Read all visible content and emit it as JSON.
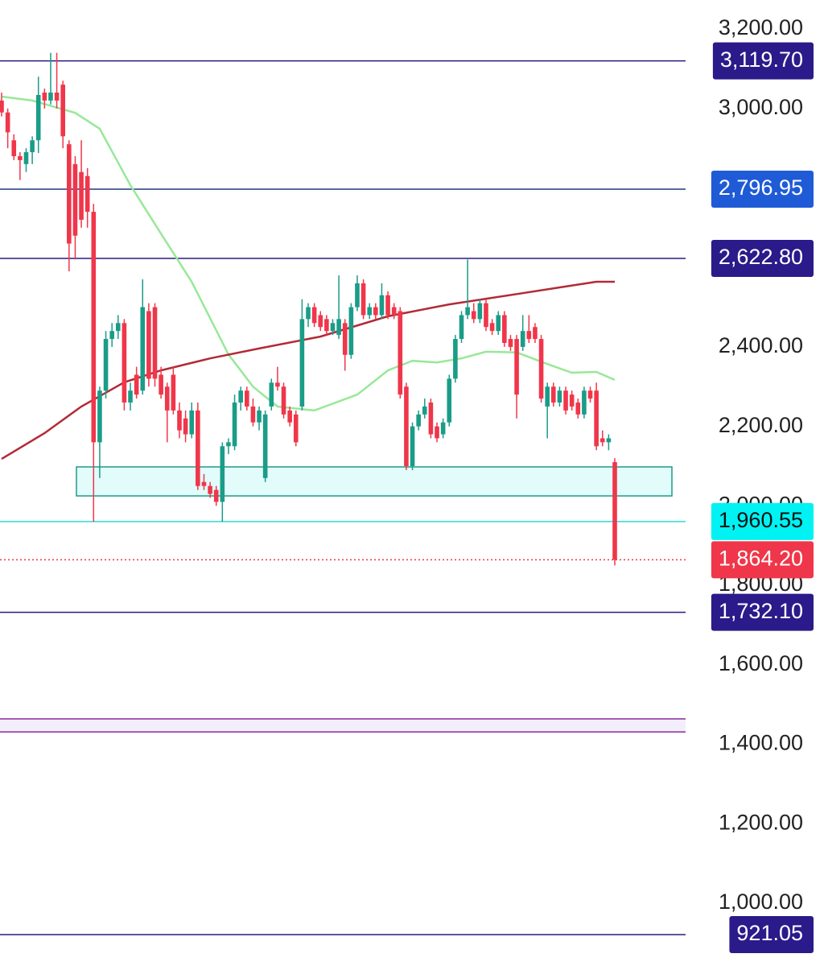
{
  "chart_data": {
    "type": "candlestick",
    "ylim": [
      842,
      3273
    ],
    "yticks": [
      {
        "value": 3200,
        "label": "3,200.00"
      },
      {
        "value": 3000,
        "label": "3,000.00"
      },
      {
        "value": 2400,
        "label": "2,400.00"
      },
      {
        "value": 2200,
        "label": "2,200.00"
      },
      {
        "value": 2000,
        "label": "2,000.00"
      },
      {
        "value": 1800,
        "label": "1,800.00"
      },
      {
        "value": 1600,
        "label": "1,600.00"
      },
      {
        "value": 1400,
        "label": "1,400.00"
      },
      {
        "value": 1200,
        "label": "1,200.00"
      },
      {
        "value": 1000,
        "label": "1,000.00"
      }
    ],
    "up_color": "#1a9c88",
    "down_color": "#f0364a",
    "candles": [
      [
        3020,
        3040,
        2980,
        2990
      ],
      [
        2990,
        3000,
        2900,
        2940
      ],
      [
        2920,
        2935,
        2870,
        2880
      ],
      [
        2880,
        2890,
        2820,
        2870
      ],
      [
        2860,
        2900,
        2840,
        2890
      ],
      [
        2890,
        2930,
        2860,
        2920
      ],
      [
        2920,
        3080,
        2888,
        3034
      ],
      [
        3040,
        3050,
        3000,
        3020
      ],
      [
        3020,
        3140,
        3010,
        3040
      ],
      [
        3040,
        3140,
        3000,
        3020
      ],
      [
        3060,
        3070,
        2900,
        2930
      ],
      [
        2910,
        2920,
        2590,
        2660
      ],
      [
        2860,
        2880,
        2620,
        2680
      ],
      [
        2840,
        2920,
        2700,
        2720
      ],
      [
        2830,
        2850,
        2700,
        2740
      ],
      [
        2740,
        2760,
        1960,
        2160
      ],
      [
        2160,
        2300,
        2070,
        2290
      ],
      [
        2290,
        2440,
        2270,
        2420
      ],
      [
        2420,
        2460,
        2400,
        2440
      ],
      [
        2440,
        2480,
        2420,
        2460
      ],
      [
        2460,
        2470,
        2240,
        2260
      ],
      [
        2260,
        2310,
        2240,
        2290
      ],
      [
        2330,
        2350,
        2270,
        2280
      ],
      [
        2290,
        2570,
        2280,
        2500
      ],
      [
        2490,
        2510,
        2300,
        2320
      ],
      [
        2500,
        2510,
        2300,
        2320
      ],
      [
        2330,
        2350,
        2270,
        2280
      ],
      [
        2300,
        2310,
        2160,
        2240
      ],
      [
        2330,
        2350,
        2230,
        2240
      ],
      [
        2240,
        2260,
        2170,
        2190
      ],
      [
        2220,
        2240,
        2160,
        2180
      ],
      [
        2180,
        2260,
        2170,
        2240
      ],
      [
        2240,
        2260,
        2040,
        2050
      ],
      [
        2060,
        2080,
        2040,
        2050
      ],
      [
        2050,
        2060,
        2020,
        2030
      ],
      [
        2040,
        2050,
        2000,
        2010
      ],
      [
        2010,
        2160,
        1960,
        2150
      ],
      [
        2150,
        2170,
        2130,
        2160
      ],
      [
        2150,
        2280,
        2140,
        2260
      ],
      [
        2260,
        2300,
        2240,
        2290
      ],
      [
        2290,
        2300,
        2240,
        2250
      ],
      [
        2250,
        2270,
        2200,
        2210
      ],
      [
        2210,
        2250,
        2190,
        2240
      ],
      [
        2070,
        2240,
        2060,
        2230
      ],
      [
        2250,
        2320,
        2240,
        2310
      ],
      [
        2310,
        2350,
        2290,
        2300
      ],
      [
        2300,
        2310,
        2220,
        2230
      ],
      [
        2240,
        2250,
        2200,
        2210
      ],
      [
        2230,
        2240,
        2150,
        2160
      ],
      [
        2250,
        2520,
        2240,
        2470
      ],
      [
        2470,
        2510,
        2450,
        2500
      ],
      [
        2500,
        2510,
        2450,
        2460
      ],
      [
        2480,
        2490,
        2440,
        2450
      ],
      [
        2470,
        2480,
        2430,
        2440
      ],
      [
        2440,
        2470,
        2430,
        2460
      ],
      [
        2430,
        2580,
        2420,
        2470
      ],
      [
        2460,
        2470,
        2340,
        2380
      ],
      [
        2380,
        2510,
        2370,
        2500
      ],
      [
        2500,
        2580,
        2490,
        2560
      ],
      [
        2560,
        2570,
        2470,
        2480
      ],
      [
        2480,
        2510,
        2470,
        2500
      ],
      [
        2500,
        2510,
        2470,
        2480
      ],
      [
        2480,
        2560,
        2470,
        2530
      ],
      [
        2530,
        2540,
        2470,
        2480
      ],
      [
        2500,
        2510,
        2470,
        2480
      ],
      [
        2490,
        2500,
        2270,
        2280
      ],
      [
        2300,
        2310,
        2090,
        2100
      ],
      [
        2100,
        2210,
        2090,
        2200
      ],
      [
        2200,
        2240,
        2190,
        2230
      ],
      [
        2230,
        2270,
        2220,
        2250
      ],
      [
        2260,
        2270,
        2170,
        2180
      ],
      [
        2200,
        2210,
        2160,
        2170
      ],
      [
        2180,
        2220,
        2170,
        2210
      ],
      [
        2210,
        2330,
        2200,
        2320
      ],
      [
        2320,
        2430,
        2310,
        2420
      ],
      [
        2420,
        2490,
        2410,
        2480
      ],
      [
        2480,
        2620,
        2470,
        2500
      ],
      [
        2490,
        2510,
        2460,
        2470
      ],
      [
        2470,
        2520,
        2460,
        2510
      ],
      [
        2510,
        2520,
        2440,
        2450
      ],
      [
        2460,
        2470,
        2430,
        2440
      ],
      [
        2440,
        2490,
        2430,
        2480
      ],
      [
        2480,
        2490,
        2400,
        2410
      ],
      [
        2420,
        2430,
        2390,
        2400
      ],
      [
        2420,
        2430,
        2220,
        2280
      ],
      [
        2400,
        2480,
        2390,
        2440
      ],
      [
        2440,
        2480,
        2410,
        2420
      ],
      [
        2450,
        2460,
        2410,
        2420
      ],
      [
        2420,
        2430,
        2260,
        2270
      ],
      [
        2250,
        2310,
        2170,
        2300
      ],
      [
        2300,
        2310,
        2250,
        2260
      ],
      [
        2260,
        2300,
        2250,
        2290
      ],
      [
        2290,
        2300,
        2230,
        2240
      ],
      [
        2280,
        2290,
        2240,
        2250
      ],
      [
        2260,
        2270,
        2220,
        2230
      ],
      [
        2230,
        2300,
        2220,
        2290
      ],
      [
        2290,
        2300,
        2260,
        2270
      ],
      [
        2290,
        2310,
        2140,
        2150
      ],
      [
        2170,
        2190,
        2150,
        2160
      ],
      [
        2160,
        2180,
        2140,
        2170
      ],
      [
        2110,
        2120,
        1850,
        1864.2
      ]
    ],
    "lines": [
      {
        "color": "#98e898",
        "x": [
          0,
          5,
          12,
          16,
          21,
          26,
          31,
          37,
          41,
          45,
          51,
          58,
          63,
          67,
          71,
          75,
          79,
          84,
          89,
          93,
          97,
          100
        ],
        "values": [
          3030,
          3020,
          2989,
          2949,
          2807,
          2685,
          2564,
          2381,
          2300,
          2250,
          2240,
          2280,
          2341,
          2365,
          2361,
          2371,
          2388,
          2386,
          2357,
          2335,
          2337,
          2317
        ]
      },
      {
        "color": "#b22a36",
        "x": [
          0,
          7,
          13,
          20,
          26,
          34,
          42,
          52,
          63,
          73,
          84,
          92,
          97,
          100
        ],
        "values": [
          2118,
          2183,
          2250,
          2311,
          2341,
          2371,
          2396,
          2426,
          2477,
          2507,
          2533,
          2552,
          2564,
          2564
        ]
      }
    ],
    "levels": [
      {
        "value": 3119.7,
        "label": "3,119.70",
        "color": "#2b1a7e",
        "label_color": "#2b1a8a",
        "text_color": "#ffffff"
      },
      {
        "value": 2796.95,
        "label": "2,796.95",
        "color": "#1c3a7a",
        "label_color": "#1f5bd6",
        "text_color": "#ffffff"
      },
      {
        "value": 2622.8,
        "label": "2,622.80",
        "color": "#2b1a7e",
        "label_color": "#2b1a8a",
        "text_color": "#ffffff"
      },
      {
        "value": 1960.55,
        "label": "1,960.55",
        "color": "#30d8d8",
        "label_color": "#00f2f2",
        "text_color": "#111111"
      },
      {
        "value": 1864.2,
        "label": "1,864.20",
        "color": "#f0364a",
        "label_color": "#f0364a",
        "text_color": "#ffffff",
        "dotted": true
      },
      {
        "value": 1732.1,
        "label": "1,732.10",
        "color": "#2b1a7e",
        "label_color": "#2b1a8a",
        "text_color": "#ffffff"
      },
      {
        "value": 921.05,
        "label": "921.05",
        "color": "#2b1a7e",
        "label_color": "#2b1a8a",
        "text_color": "#ffffff"
      }
    ],
    "zones": [
      {
        "low": 2025,
        "high": 2098,
        "fill": "#e2fbfb",
        "color": "#1a9c88"
      },
      {
        "low": 1431,
        "high": 1464,
        "fill": "#f3eefc",
        "color": "#8a2a9c"
      }
    ]
  }
}
